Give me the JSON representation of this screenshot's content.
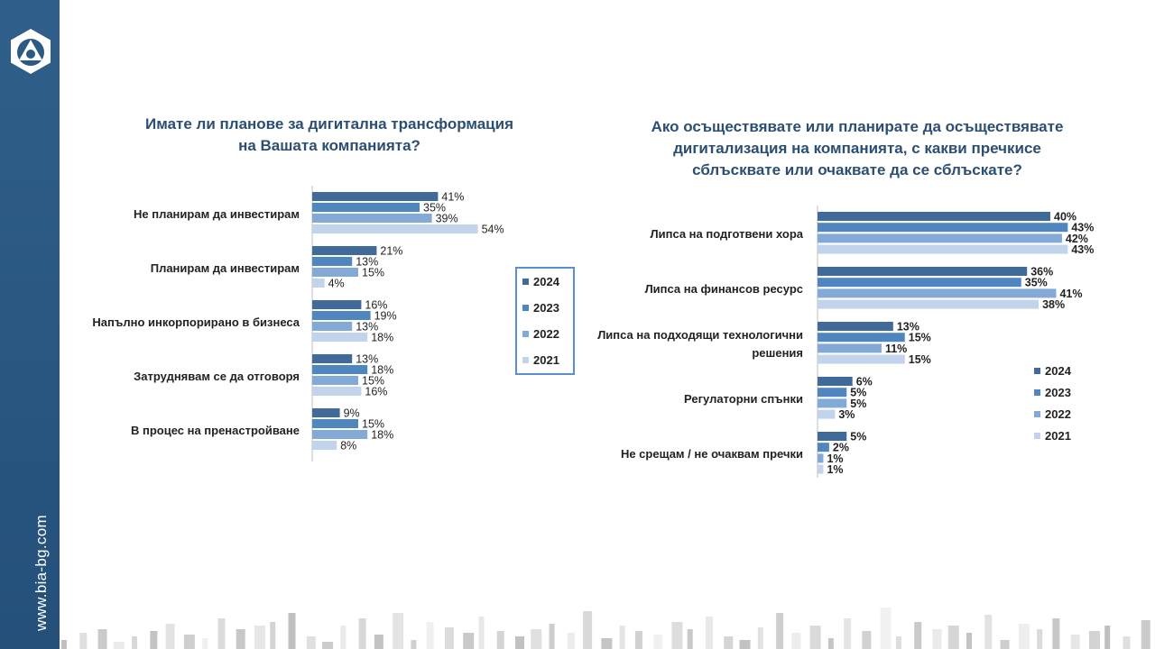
{
  "site": "www.bia-bg.com",
  "colors": {
    "sidebar": "#2b5a84",
    "title": "#2b4e73",
    "series": [
      "#3f6a9a",
      "#4f86c0",
      "#83a9d6",
      "#c2d4ec"
    ]
  },
  "chart_data": [
    {
      "type": "bar",
      "orientation": "horizontal",
      "title_lines": [
        "Имате ли планове за дигитална трансформация",
        "на Вашата компанията?"
      ],
      "categories": [
        "Не планирам да инвестирам",
        "Планирам да инвестирам",
        "Напълно инкорпорирано в бизнеса",
        "Затруднявам се да отговоря",
        "В процес на пренастройване"
      ],
      "series": [
        {
          "name": "2024",
          "values": [
            41,
            21,
            16,
            13,
            9
          ]
        },
        {
          "name": "2023",
          "values": [
            35,
            13,
            19,
            18,
            15
          ]
        },
        {
          "name": "2022",
          "values": [
            39,
            15,
            13,
            15,
            18
          ]
        },
        {
          "name": "2021",
          "values": [
            54,
            4,
            18,
            16,
            8
          ]
        }
      ],
      "value_suffix": "%",
      "xlim": [
        0,
        60
      ],
      "legend": "right, boxed"
    },
    {
      "type": "bar",
      "orientation": "horizontal",
      "title_lines": [
        "Ако осъществявате или планирате да осъществявате",
        "дигитализация на компанията, с какви пречкисе",
        "сблъсквате или очаквате да се сблъскате?"
      ],
      "categories": [
        [
          "Липса на подготвени хора"
        ],
        [
          "Липса на финансов ресурс"
        ],
        [
          "Липса на подходящи технологични",
          "решения"
        ],
        [
          "Регулаторни спънки"
        ],
        [
          "Не срещам / не очаквам пречки"
        ]
      ],
      "series": [
        {
          "name": "2024",
          "values": [
            40,
            36,
            13,
            6,
            5
          ]
        },
        {
          "name": "2023",
          "values": [
            43,
            35,
            15,
            5,
            2
          ]
        },
        {
          "name": "2022",
          "values": [
            42,
            41,
            11,
            5,
            1
          ]
        },
        {
          "name": "2021",
          "values": [
            43,
            38,
            15,
            3,
            1
          ]
        }
      ],
      "value_suffix": "%",
      "xlim": [
        0,
        43
      ],
      "legend": "right"
    }
  ]
}
